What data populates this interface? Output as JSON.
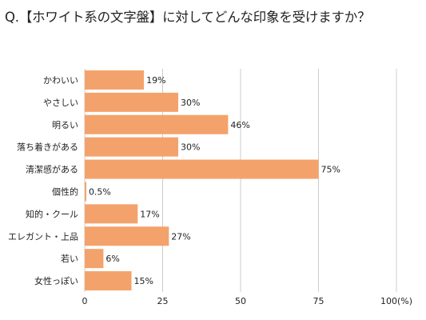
{
  "chart_data": {
    "type": "bar",
    "orientation": "horizontal",
    "title": "Q.【ホワイト系の文字盤】に対してどんな印象を受けますか？",
    "categories": [
      "かわいい",
      "やさしい",
      "明るい",
      "落ち着きがある",
      "清潔感がある",
      "個性的",
      "知的・クール",
      "エレガント・上品",
      "若い",
      "女性っぽい"
    ],
    "values": [
      19,
      30,
      46,
      30,
      75,
      0.5,
      17,
      27,
      6,
      15
    ],
    "value_labels": [
      "19%",
      "30%",
      "46%",
      "30%",
      "75%",
      "0.5%",
      "17%",
      "27%",
      "6%",
      "15%"
    ],
    "xlim": [
      0,
      100
    ],
    "x_ticks": [
      "0",
      "25",
      "50",
      "75",
      "100(%)"
    ],
    "x_tick_values": [
      0,
      25,
      50,
      75,
      100
    ],
    "grid": "vertical",
    "bar_color": "#f4a26b",
    "grid_color": "#cccccc"
  }
}
